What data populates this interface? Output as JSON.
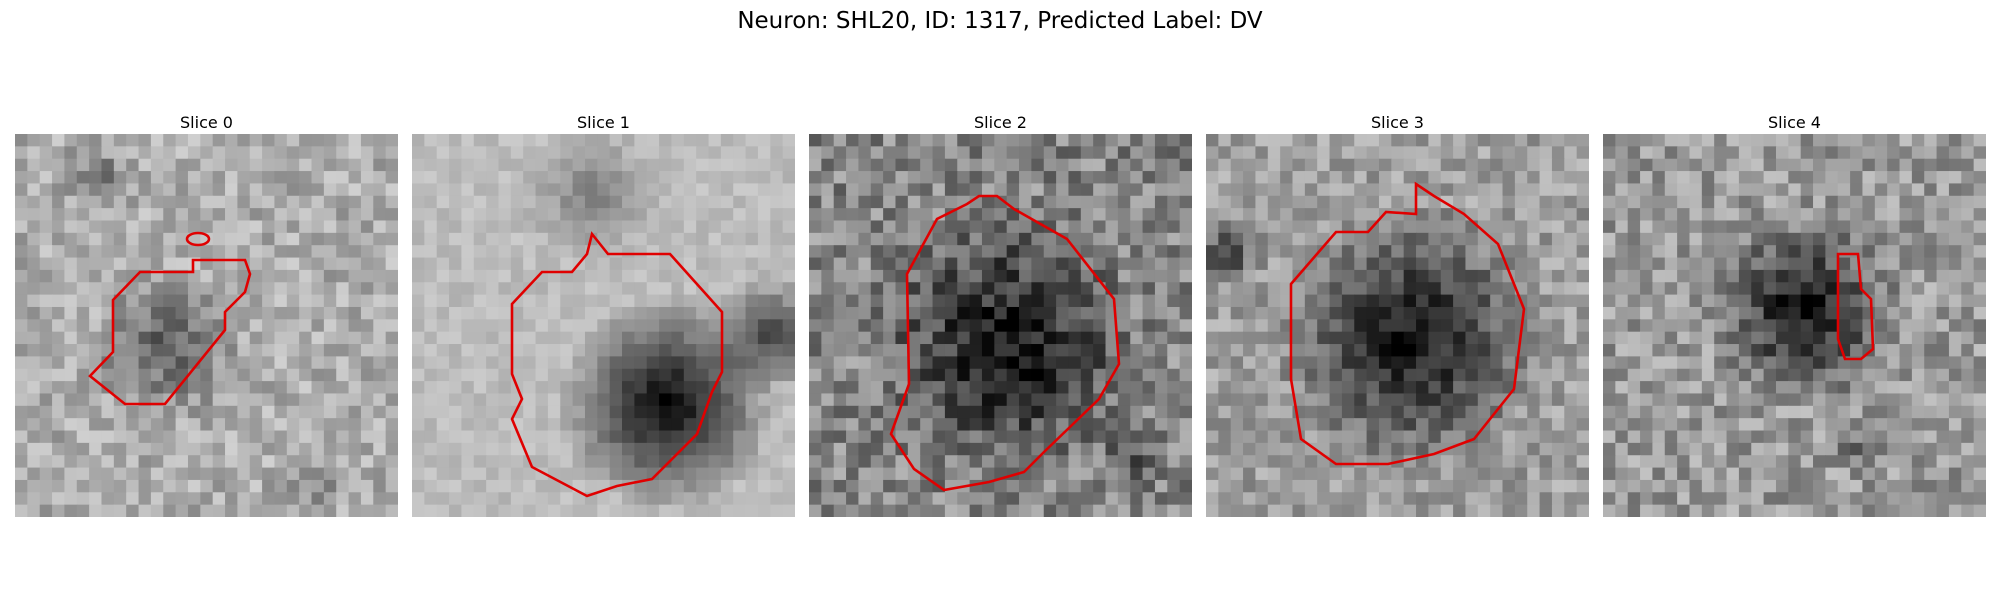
{
  "figure": {
    "title": "Neuron: SHL20, ID: 1317, Predicted Label: DV"
  },
  "colors": {
    "contour": "#e00000",
    "colormap": "gray"
  },
  "slices": [
    {
      "title": "Slice 0"
    },
    {
      "title": "Slice 1"
    },
    {
      "title": "Slice 2"
    },
    {
      "title": "Slice 3"
    },
    {
      "title": "Slice 4"
    }
  ]
}
